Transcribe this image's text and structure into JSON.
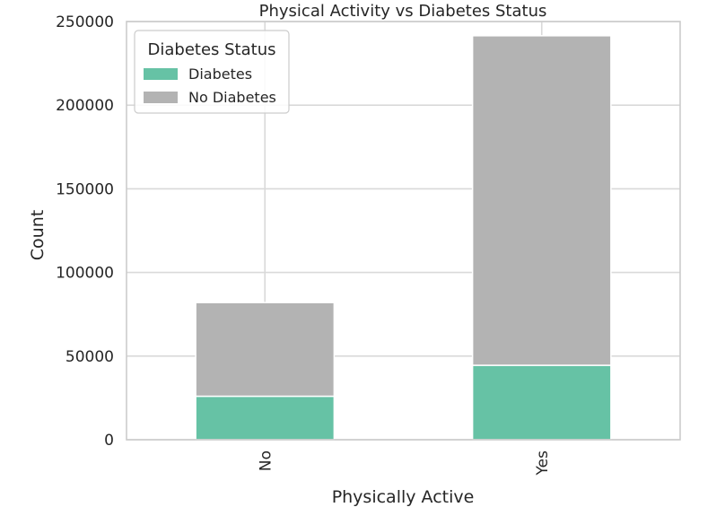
{
  "chart_data": {
    "type": "bar",
    "stacked": true,
    "title": "Physical Activity vs Diabetes Status",
    "xlabel": "Physically Active",
    "ylabel": "Count",
    "categories": [
      "No",
      "Yes"
    ],
    "series": [
      {
        "name": "Diabetes",
        "values": [
          26000,
          44500
        ],
        "color": "#66c2a5"
      },
      {
        "name": "No Diabetes",
        "values": [
          56000,
          197000
        ],
        "color": "#b3b3b3"
      }
    ],
    "ylim": [
      0,
      250000
    ],
    "yticks": [
      0,
      50000,
      100000,
      150000,
      200000,
      250000
    ],
    "grid": true,
    "legend": {
      "title": "Diabetes Status",
      "placement": "top-left"
    }
  }
}
